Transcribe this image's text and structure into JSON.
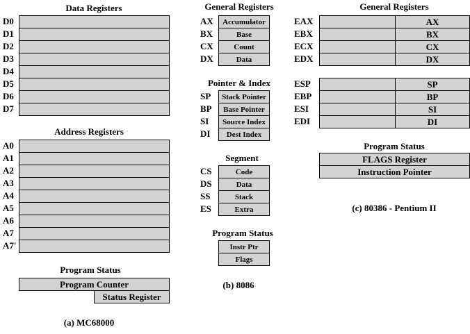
{
  "mc68000": {
    "data_title": "Data Registers",
    "data_regs": [
      "D0",
      "D1",
      "D2",
      "D3",
      "D4",
      "D5",
      "D6",
      "D7"
    ],
    "addr_title": "Address Registers",
    "addr_regs": [
      "A0",
      "A1",
      "A2",
      "A3",
      "A4",
      "A5",
      "A6",
      "A7",
      "A7'"
    ],
    "status_title": "Program Status",
    "program_counter": "Program Counter",
    "status_register": "Status Register",
    "caption": "(a) MC68000"
  },
  "i8086": {
    "general_title": "General Registers",
    "general": [
      {
        "name": "AX",
        "desc": "Accumulator"
      },
      {
        "name": "BX",
        "desc": "Base"
      },
      {
        "name": "CX",
        "desc": "Count"
      },
      {
        "name": "DX",
        "desc": "Data"
      }
    ],
    "pointer_title": "Pointer & Index",
    "pointer": [
      {
        "name": "SP",
        "desc": "Stack Pointer"
      },
      {
        "name": "BP",
        "desc": "Base Pointer"
      },
      {
        "name": "SI",
        "desc": "Source Index"
      },
      {
        "name": "DI",
        "desc": "Dest Index"
      }
    ],
    "segment_title": "Segment",
    "segment": [
      {
        "name": "CS",
        "desc": "Code"
      },
      {
        "name": "DS",
        "desc": "Data"
      },
      {
        "name": "SS",
        "desc": "Stack"
      },
      {
        "name": "ES",
        "desc": "Extra"
      }
    ],
    "status_title": "Program Status",
    "status": [
      "Instr Ptr",
      "Flags"
    ],
    "caption": "(b) 8086"
  },
  "i80386": {
    "general_title": "General Registers",
    "general": [
      {
        "name": "EAX",
        "low": "AX"
      },
      {
        "name": "EBX",
        "low": "BX"
      },
      {
        "name": "ECX",
        "low": "CX"
      },
      {
        "name": "EDX",
        "low": "DX"
      }
    ],
    "pointer": [
      {
        "name": "ESP",
        "low": "SP"
      },
      {
        "name": "EBP",
        "low": "BP"
      },
      {
        "name": "ESI",
        "low": "SI"
      },
      {
        "name": "EDI",
        "low": "DI"
      }
    ],
    "status_title": "Program Status",
    "status": [
      "FLAGS Register",
      "Instruction Pointer"
    ],
    "caption": "(c) 80386 - Pentium II"
  }
}
